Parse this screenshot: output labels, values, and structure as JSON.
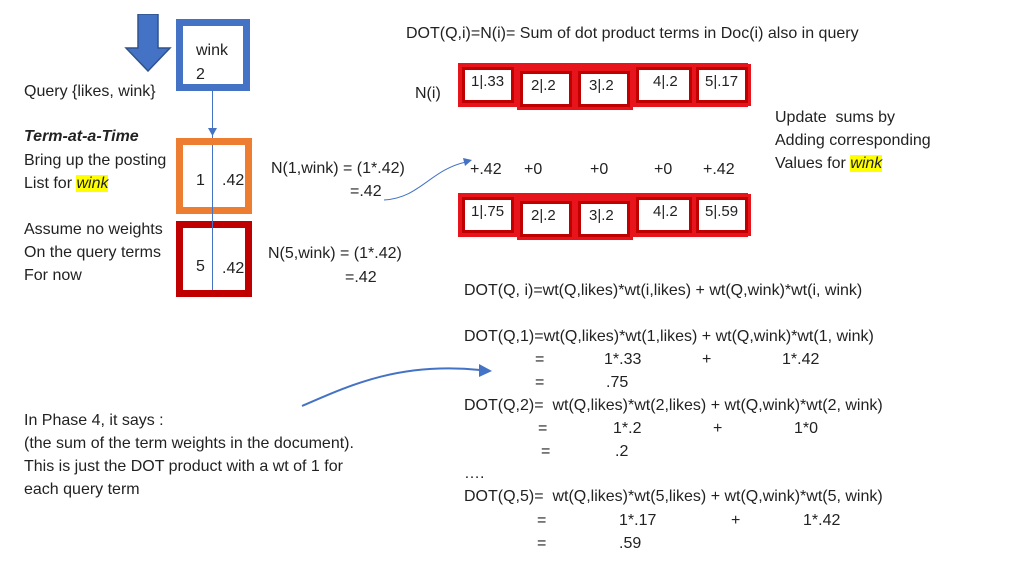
{
  "header": {
    "dot_definition": "DOT(Q,i)=N(i)= Sum of dot product terms in Doc(i) also in query"
  },
  "left": {
    "query": "Query {likes, wink}",
    "method_title": "Term-at-a-Time",
    "posting_line1": "Bring up the posting",
    "posting_line2_prefix": "List for ",
    "posting_line2_word": "wink",
    "assume_line1": "Assume no weights",
    "assume_line2": "On the query terms",
    "assume_line3": "For now",
    "phase_line1": "In Phase 4, it says :",
    "phase_line2": "(the sum of the term weights in the document).",
    "phase_line3": "This is just the DOT product with a wt of 1 for",
    "phase_line4": "each query term"
  },
  "term_box": {
    "term": "wink",
    "df": "2"
  },
  "postings": [
    {
      "doc": "1",
      "wt": ".42"
    },
    {
      "doc": "5",
      "wt": ".42"
    }
  ],
  "computations": {
    "n1_line1": "N(1,wink) = (1*.42)",
    "n1_line2": "=.42",
    "n5_line1": "N(5,wink) = (1*.42)",
    "n5_line2": "=.42"
  },
  "accumulators": {
    "label": "N(i)",
    "before": [
      "1|.33",
      "2|.2",
      "3|.2",
      "4|.2",
      "5|.17"
    ],
    "increments": [
      "+.42",
      "+0",
      "+0",
      "+0",
      "+.42"
    ],
    "after": [
      "1|.75",
      "2|.2",
      "3|.2",
      "4|.2",
      "5|.59"
    ]
  },
  "update_note": {
    "line1": "Update  sums by",
    "line2": "Adding corresponding",
    "line3_prefix": "Values for ",
    "line3_word": "wink"
  },
  "formulas": {
    "general": "DOT(Q, i)=wt(Q,likes)*wt(i,likes) + wt(Q,wink)*wt(i, wink)",
    "doc1": "DOT(Q,1)=wt(Q,likes)*wt(1,likes) + wt(Q,wink)*wt(1, wink)",
    "doc1_eq1": "=",
    "doc1_a": "1*.33",
    "doc1_plus": "+",
    "doc1_b": "1*.42",
    "doc1_eq2": "=",
    "doc1_res": ".75",
    "doc2": "DOT(Q,2)=  wt(Q,likes)*wt(2,likes) + wt(Q,wink)*wt(2, wink)",
    "doc2_eq1": "=",
    "doc2_a": "1*.2",
    "doc2_plus": "+",
    "doc2_b": "1*0",
    "doc2_eq2": "=",
    "doc2_res": ".2",
    "ellipsis": "….",
    "doc5": "DOT(Q,5)=  wt(Q,likes)*wt(5,likes) + wt(Q,wink)*wt(5, wink)",
    "doc5_eq1": "=",
    "doc5_a": "1*.17",
    "doc5_plus": "+",
    "doc5_b": "1*.42",
    "doc5_eq2": "=",
    "doc5_res": ".59"
  },
  "colors": {
    "arrow_blue": "#4472c4",
    "term_box_border": "#4472c4",
    "posting1_border": "#ed7d31",
    "posting2_border": "#c00000",
    "accumulator_red": "#e8141b",
    "highlight": "#ffff00"
  }
}
